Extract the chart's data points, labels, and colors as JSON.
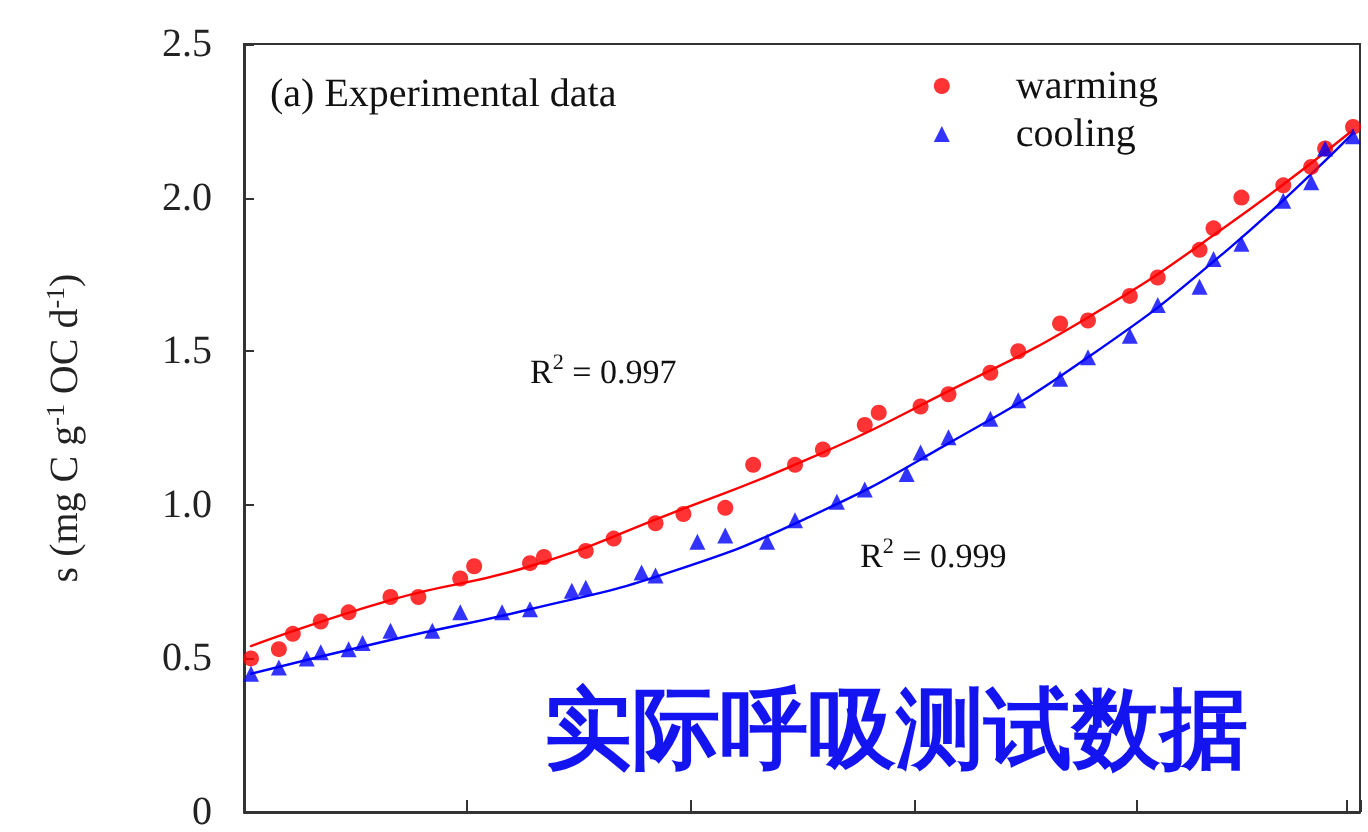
{
  "chart_data": {
    "type": "scatter",
    "title": "(a) Experimental data",
    "ylabel": "s (mg C g$^{-1}$ OC d$^{-1}$)",
    "categories": [
      null,
      null,
      null,
      null,
      null,
      null,
      null,
      null,
      null,
      null,
      null,
      null,
      null,
      null,
      null,
      null,
      null,
      null,
      null,
      null,
      null,
      null,
      null,
      null,
      null,
      null,
      null,
      null,
      null,
      null,
      null,
      null,
      null,
      null,
      null,
      null,
      null,
      null,
      null,
      null,
      null,
      null,
      null,
      null,
      null,
      null,
      null,
      null,
      null,
      null,
      null,
      null,
      null,
      null,
      null,
      null,
      null,
      null,
      null,
      null,
      null,
      null,
      null,
      null,
      null,
      null,
      null,
      null,
      null,
      null,
      null,
      null,
      null,
      null,
      null,
      null,
      null,
      null,
      null,
      null
    ],
    "ylim": [
      0,
      2.5
    ],
    "yticks": [
      0,
      0.5,
      {
        "value": 1,
        "label": "1.0"
      },
      1.5,
      {
        "value": 2,
        "label": "2.0"
      },
      2.5
    ],
    "tick_labels": "y",
    "grid": false,
    "legend": "top right",
    "series": [
      {
        "name": "warming",
        "color": "#ff0000",
        "marker": "circle",
        "values": [
          0.5,
          null,
          0.53,
          0.58,
          null,
          0.62,
          null,
          0.65,
          null,
          null,
          0.7,
          null,
          0.7,
          null,
          null,
          0.76,
          0.8,
          null,
          null,
          null,
          0.81,
          0.83,
          null,
          null,
          0.85,
          null,
          0.89,
          null,
          null,
          0.94,
          null,
          0.97,
          null,
          null,
          0.99,
          null,
          1.13,
          null,
          null,
          1.13,
          null,
          1.18,
          null,
          null,
          1.26,
          1.3,
          null,
          null,
          1.32,
          null,
          1.36,
          null,
          null,
          1.43,
          null,
          1.5,
          null,
          null,
          1.59,
          null,
          1.6,
          null,
          null,
          1.68,
          null,
          1.74,
          null,
          null,
          1.83,
          1.9,
          null,
          2.0,
          null,
          null,
          2.04,
          null,
          2.1,
          2.16,
          null,
          2.23
        ]
      },
      {
        "name": "cooling",
        "color": "#0000ff",
        "marker": "triangle",
        "values": [
          0.45,
          null,
          0.47,
          null,
          0.5,
          0.52,
          null,
          0.53,
          0.55,
          null,
          0.59,
          null,
          null,
          0.59,
          null,
          0.65,
          null,
          null,
          0.65,
          null,
          0.66,
          null,
          null,
          0.72,
          0.73,
          null,
          null,
          null,
          0.78,
          0.77,
          null,
          null,
          0.88,
          null,
          0.9,
          null,
          null,
          0.88,
          null,
          0.95,
          null,
          null,
          1.01,
          null,
          1.05,
          null,
          null,
          1.1,
          1.17,
          null,
          1.22,
          null,
          null,
          1.28,
          null,
          1.34,
          null,
          null,
          1.41,
          null,
          1.48,
          null,
          null,
          1.55,
          null,
          1.65,
          null,
          null,
          1.71,
          1.8,
          null,
          1.85,
          null,
          null,
          1.99,
          null,
          2.05,
          2.16,
          null,
          2.2
        ]
      },
      {
        "type": "line",
        "color": "#ff0000",
        "marker": "none",
        "values": [
          0.54,
          null,
          null,
          null,
          null,
          null,
          null,
          null,
          null,
          null,
          0.69,
          null,
          null,
          null,
          null,
          null,
          null,
          null,
          null,
          null,
          0.8,
          null,
          null,
          null,
          null,
          null,
          null,
          null,
          null,
          null,
          0.97,
          null,
          null,
          null,
          null,
          null,
          null,
          null,
          null,
          null,
          1.15,
          null,
          null,
          null,
          null,
          null,
          null,
          null,
          null,
          null,
          1.37,
          null,
          null,
          null,
          null,
          null,
          null,
          null,
          null,
          null,
          1.61,
          null,
          null,
          null,
          null,
          null,
          null,
          null,
          null,
          null,
          1.91,
          null,
          null,
          null,
          null,
          null,
          null,
          null,
          null,
          2.22
        ]
      },
      {
        "type": "line",
        "color": "#0000ff",
        "marker": "none",
        "values": [
          0.45,
          null,
          null,
          null,
          null,
          null,
          null,
          null,
          null,
          null,
          0.56,
          null,
          null,
          null,
          null,
          null,
          null,
          null,
          null,
          null,
          0.66,
          null,
          null,
          null,
          null,
          null,
          null,
          null,
          null,
          null,
          0.78,
          null,
          null,
          null,
          null,
          null,
          null,
          null,
          null,
          null,
          0.96,
          null,
          null,
          null,
          null,
          null,
          null,
          null,
          null,
          null,
          1.2,
          null,
          null,
          null,
          null,
          null,
          null,
          null,
          null,
          null,
          1.48,
          null,
          null,
          null,
          null,
          null,
          null,
          null,
          null,
          null,
          1.83,
          null,
          null,
          null,
          null,
          null,
          null,
          null,
          null,
          2.21
        ]
      }
    ],
    "annotations": [
      "R$^{2}$ = 0.997",
      "R$^{2}$ = 0.999",
      "实际呼吸测试数据"
    ]
  }
}
